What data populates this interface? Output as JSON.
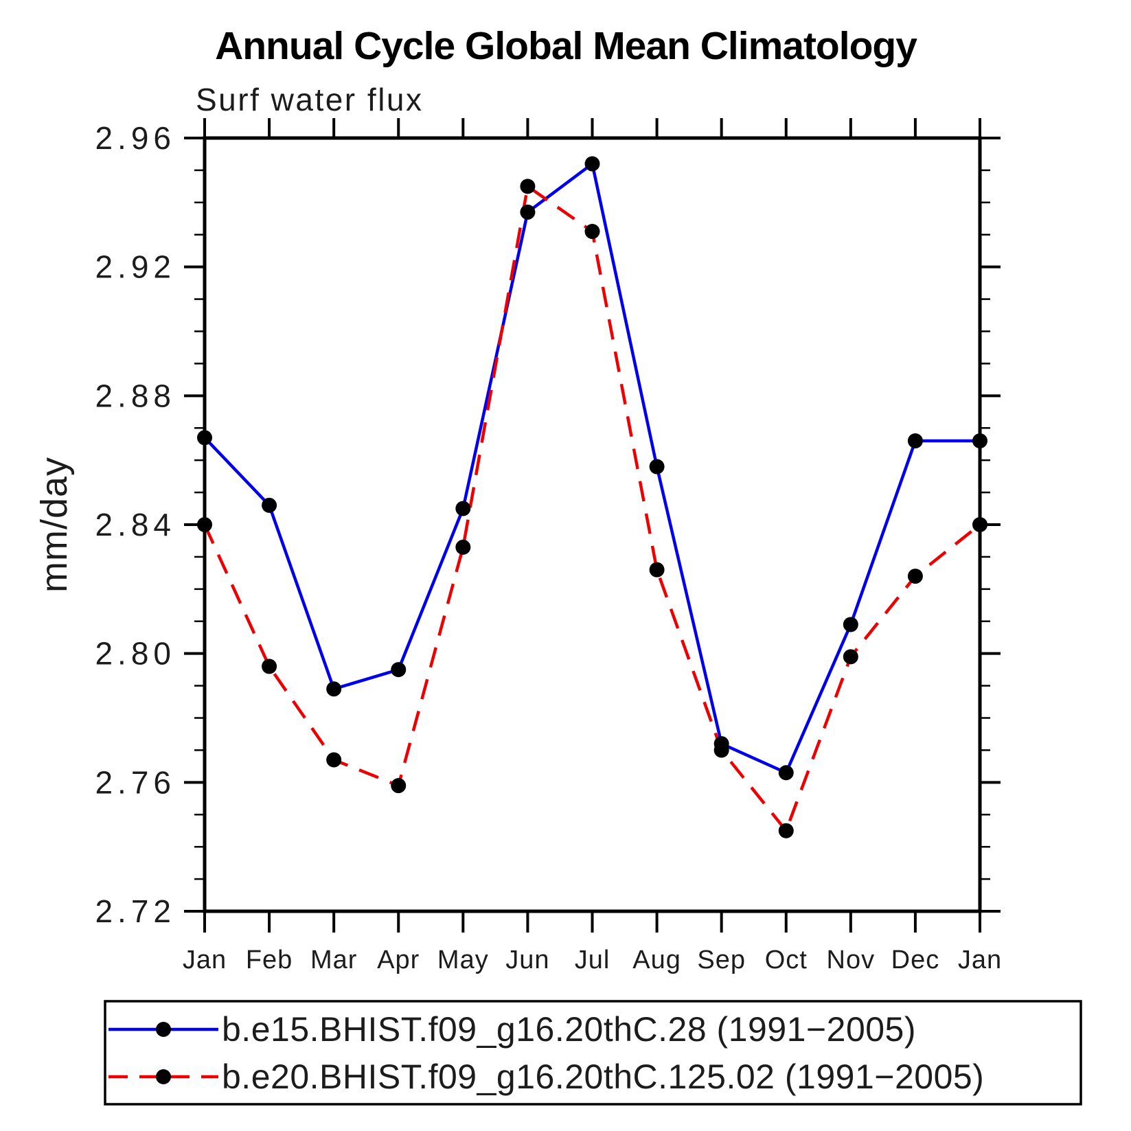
{
  "chart_data": {
    "type": "line",
    "title": "Annual Cycle Global Mean Climatology",
    "subtitle": "Surf water flux",
    "ylabel": "mm/day",
    "ylim": [
      2.72,
      2.96
    ],
    "y_tick_labels": [
      "2.72",
      "2.76",
      "2.80",
      "2.84",
      "2.88",
      "2.92",
      "2.96"
    ],
    "y_major_tick_step": 0.04,
    "y_minor_tick_step": 0.01,
    "categories": [
      "Jan",
      "Feb",
      "Mar",
      "Apr",
      "May",
      "Jun",
      "Jul",
      "Aug",
      "Sep",
      "Oct",
      "Nov",
      "Dec",
      "Jan"
    ],
    "series": [
      {
        "name": "b.e15.BHIST.f09_g16.20thC.28 (1991−2005)",
        "color": "#0000ee",
        "line_style": "solid",
        "marker": "filled-circle",
        "marker_color": "#000000",
        "values": [
          2.867,
          2.846,
          2.789,
          2.795,
          2.845,
          2.937,
          2.952,
          2.858,
          2.772,
          2.763,
          2.809,
          2.866,
          2.866
        ]
      },
      {
        "name": "b.e20.BHIST.f09_g16.20thC.125.02 (1991−2005)",
        "color": "#ee0000",
        "line_style": "dashed",
        "marker": "filled-circle",
        "marker_color": "#000000",
        "values": [
          2.84,
          2.796,
          2.767,
          2.759,
          2.833,
          2.945,
          2.931,
          2.826,
          2.77,
          2.745,
          2.799,
          2.824,
          2.84
        ]
      }
    ],
    "grid": false,
    "legend_position": "bottom-left",
    "axis_color": "#000000"
  }
}
